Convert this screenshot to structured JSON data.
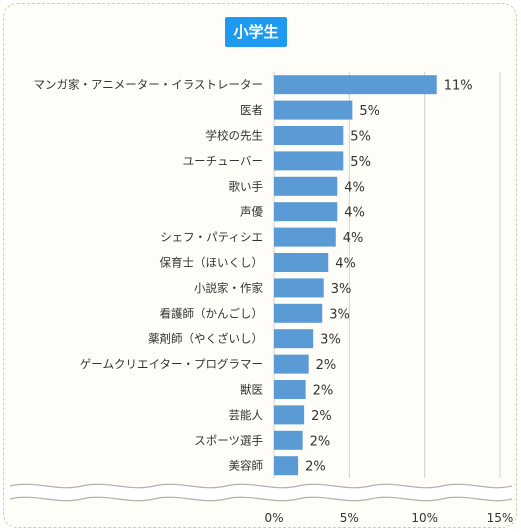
{
  "chart_data": {
    "type": "bar",
    "orientation": "horizontal",
    "title": "小学生",
    "categories": [
      "マンガ家・アニメーター・イラストレーター",
      "医者",
      "学校の先生",
      "ユーチューバー",
      "歌い手",
      "声優",
      "シェフ・パティシエ",
      "保育士（ほいくし）",
      "小説家・作家",
      "看護師（かんごし）",
      "薬剤師（やくざいし）",
      "ゲームクリエイター・プログラマー",
      "獣医",
      "芸能人",
      "スポーツ選手",
      "美容師"
    ],
    "values": [
      10.8,
      5.2,
      4.6,
      4.6,
      4.2,
      4.2,
      4.1,
      3.6,
      3.3,
      3.2,
      2.6,
      2.3,
      2.1,
      2.0,
      1.9,
      1.6
    ],
    "value_labels": [
      "11%",
      "5%",
      "5%",
      "5%",
      "4%",
      "4%",
      "4%",
      "4%",
      "3%",
      "3%",
      "3%",
      "2%",
      "2%",
      "2%",
      "2%",
      "2%"
    ],
    "xlim": [
      0,
      15
    ],
    "ticks": [
      "0%",
      "5%",
      "10%",
      "15%"
    ],
    "tick_values": [
      0,
      5,
      10,
      15
    ],
    "grid": true,
    "bar_color": "#5b9bd5"
  }
}
